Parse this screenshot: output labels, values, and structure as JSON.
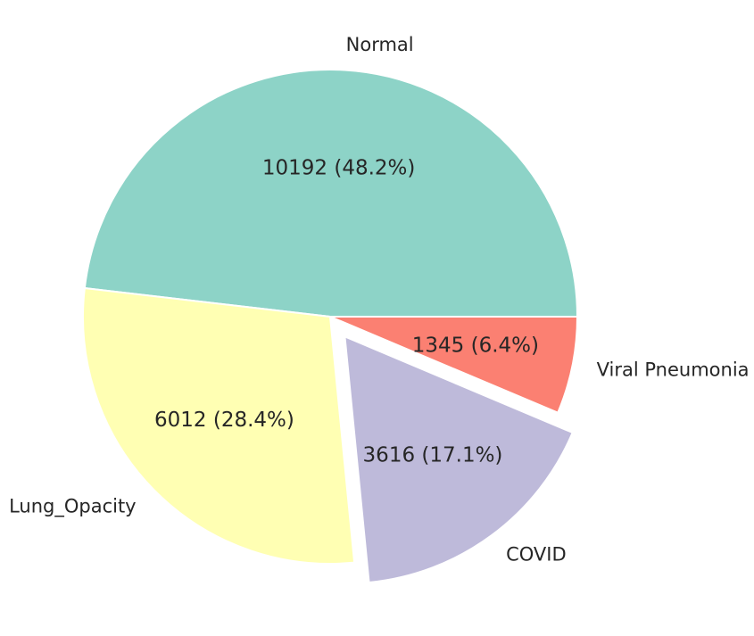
{
  "chart_data": {
    "type": "pie",
    "categories": [
      "Normal",
      "Lung_Opacity",
      "COVID",
      "Viral Pneumonia"
    ],
    "values": [
      10192,
      6012,
      3616,
      1345
    ],
    "percentages": [
      48.2,
      28.4,
      17.1,
      6.4
    ],
    "value_labels": [
      "10192 (48.2%)",
      "6012 (28.4%)",
      "3616 (17.1%)",
      "1345 (6.4%)"
    ],
    "colors": [
      "#8dd3c7",
      "#ffffb3",
      "#bebada",
      "#fb8072"
    ],
    "explode": [
      0,
      0,
      0.1,
      0
    ],
    "start_angle": 0,
    "direction": "counterclockwise",
    "title": ""
  }
}
